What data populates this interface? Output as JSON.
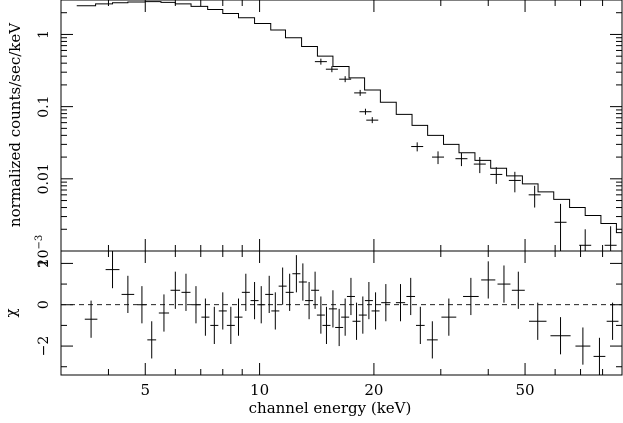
{
  "chart_data": {
    "type": "line",
    "x_scale": "log",
    "x_range": [
      3,
      90
    ],
    "xlabel": "channel energy (keV)",
    "x_ticks": [
      {
        "value": 5,
        "label": "5"
      },
      {
        "value": 10,
        "label": "10"
      },
      {
        "value": 20,
        "label": "20"
      },
      {
        "value": 50,
        "label": "50"
      }
    ],
    "x_minor_ticks": [
      3,
      4,
      6,
      7,
      8,
      9,
      30,
      40,
      60,
      70,
      80,
      90
    ],
    "top_panel": {
      "ylabel": "normalized counts/sec/keV",
      "y_scale": "log",
      "y_range": [
        0.001,
        3
      ],
      "y_ticks": [
        {
          "value": 0.001,
          "base": "10",
          "exponent": "−3"
        },
        {
          "value": 0.01,
          "label": "0.01"
        },
        {
          "value": 0.1,
          "label": "0.1"
        },
        {
          "value": 1,
          "label": "1"
        }
      ],
      "model_step": [
        [
          3.3,
          2.5
        ],
        [
          3.7,
          2.65
        ],
        [
          4.1,
          2.75
        ],
        [
          4.5,
          2.82
        ],
        [
          5.0,
          2.85
        ],
        [
          5.5,
          2.78
        ],
        [
          6.0,
          2.65
        ],
        [
          6.6,
          2.45
        ],
        [
          7.3,
          2.22
        ],
        [
          8.0,
          1.95
        ],
        [
          8.8,
          1.7
        ],
        [
          9.7,
          1.42
        ],
        [
          10.7,
          1.15
        ],
        [
          11.7,
          0.9
        ],
        [
          12.9,
          0.68
        ],
        [
          14.2,
          0.5
        ],
        [
          15.6,
          0.36
        ],
        [
          17.2,
          0.25
        ],
        [
          18.9,
          0.17
        ],
        [
          20.8,
          0.115
        ],
        [
          22.9,
          0.078
        ],
        [
          25.2,
          0.055
        ],
        [
          27.7,
          0.04
        ],
        [
          30.5,
          0.03
        ],
        [
          33.5,
          0.023
        ],
        [
          36.9,
          0.018
        ],
        [
          40.6,
          0.014
        ],
        [
          44.7,
          0.011
        ],
        [
          49.2,
          0.0085
        ],
        [
          54.1,
          0.0066
        ],
        [
          59.5,
          0.0052
        ],
        [
          65.5,
          0.004
        ],
        [
          72.0,
          0.0031
        ],
        [
          79.2,
          0.0024
        ],
        [
          87.0,
          0.0018
        ]
      ],
      "data_points": [
        {
          "x": 14.5,
          "y": 0.42
        },
        {
          "x": 15.5,
          "y": 0.33
        },
        {
          "x": 16.8,
          "y": 0.24
        },
        {
          "x": 18.4,
          "y": 0.155
        },
        {
          "x": 19.0,
          "y": 0.085
        },
        {
          "x": 19.8,
          "y": 0.065
        },
        {
          "x": 26.0,
          "y": 0.028,
          "dy": 0.004
        },
        {
          "x": 29.5,
          "y": 0.02,
          "dy": 0.004
        },
        {
          "x": 34.0,
          "y": 0.019,
          "dy": 0.004
        },
        {
          "x": 38.0,
          "y": 0.016,
          "dy": 0.004
        },
        {
          "x": 42.0,
          "y": 0.0115,
          "dy": 0.003
        },
        {
          "x": 47.0,
          "y": 0.0095,
          "dy": 0.003
        },
        {
          "x": 53.0,
          "y": 0.006,
          "dy": 0.002
        },
        {
          "x": 62.0,
          "y": 0.0025,
          "dy": 0.002
        },
        {
          "x": 72.0,
          "y": 0.0012,
          "dy": 0.0008
        },
        {
          "x": 84.0,
          "y": 0.0012,
          "dy": 0.001
        }
      ]
    },
    "bottom_panel": {
      "ylabel": "χ",
      "y_range": [
        -3.4,
        2.6
      ],
      "y_ticks": [
        {
          "value": 2,
          "label": "2"
        },
        {
          "value": 0,
          "label": "0"
        },
        {
          "value": -2,
          "label": "−2"
        }
      ],
      "zero_line": "dashed",
      "residuals": [
        {
          "x": 3.6,
          "y": -0.7,
          "dy": 0.9
        },
        {
          "x": 4.1,
          "y": 1.7,
          "dy": 0.9
        },
        {
          "x": 4.5,
          "y": 0.5,
          "dy": 0.9
        },
        {
          "x": 4.9,
          "y": 0.0,
          "dy": 0.9
        },
        {
          "x": 5.2,
          "y": -1.7,
          "dy": 0.9
        },
        {
          "x": 5.6,
          "y": -0.4,
          "dy": 0.9
        },
        {
          "x": 6.0,
          "y": 0.7,
          "dy": 0.9
        },
        {
          "x": 6.4,
          "y": 0.6,
          "dy": 0.9
        },
        {
          "x": 6.8,
          "y": 0.0,
          "dy": 0.9
        },
        {
          "x": 7.2,
          "y": -0.6,
          "dy": 0.9
        },
        {
          "x": 7.6,
          "y": -1.0,
          "dy": 0.9
        },
        {
          "x": 8.0,
          "y": -0.3,
          "dy": 0.9
        },
        {
          "x": 8.4,
          "y": -1.0,
          "dy": 0.9
        },
        {
          "x": 8.8,
          "y": -0.6,
          "dy": 0.9
        },
        {
          "x": 9.2,
          "y": 0.6,
          "dy": 0.9
        },
        {
          "x": 9.7,
          "y": 0.2,
          "dy": 0.9
        },
        {
          "x": 10.1,
          "y": 0.0,
          "dy": 0.9
        },
        {
          "x": 10.6,
          "y": 0.5,
          "dy": 0.9
        },
        {
          "x": 11.0,
          "y": -0.3,
          "dy": 0.9
        },
        {
          "x": 11.5,
          "y": 0.9,
          "dy": 0.9
        },
        {
          "x": 12.0,
          "y": 0.6,
          "dy": 0.9
        },
        {
          "x": 12.5,
          "y": 1.5,
          "dy": 0.9
        },
        {
          "x": 13.0,
          "y": 1.1,
          "dy": 0.9
        },
        {
          "x": 13.5,
          "y": 0.2,
          "dy": 0.9
        },
        {
          "x": 14.0,
          "y": 0.7,
          "dy": 0.9
        },
        {
          "x": 14.5,
          "y": -0.5,
          "dy": 0.9
        },
        {
          "x": 15.0,
          "y": -1.0,
          "dy": 0.9
        },
        {
          "x": 15.6,
          "y": -0.2,
          "dy": 0.9
        },
        {
          "x": 16.2,
          "y": -1.1,
          "dy": 0.9
        },
        {
          "x": 16.8,
          "y": -0.6,
          "dy": 0.9
        },
        {
          "x": 17.4,
          "y": 0.4,
          "dy": 0.9
        },
        {
          "x": 18.0,
          "y": -0.8,
          "dy": 0.9
        },
        {
          "x": 18.7,
          "y": -0.5,
          "dy": 0.9
        },
        {
          "x": 19.4,
          "y": 0.2,
          "dy": 0.9
        },
        {
          "x": 20.2,
          "y": -0.3,
          "dy": 0.9
        },
        {
          "x": 21.5,
          "y": 0.1,
          "dy": 0.9
        },
        {
          "x": 23.5,
          "y": 0.1,
          "dy": 0.9
        },
        {
          "x": 25.0,
          "y": 0.4,
          "dy": 0.9
        },
        {
          "x": 26.5,
          "y": -1.0,
          "dy": 0.9
        },
        {
          "x": 28.5,
          "y": -1.7,
          "dy": 0.9
        },
        {
          "x": 31.5,
          "y": -0.6,
          "dy": 0.9
        },
        {
          "x": 36.0,
          "y": 0.4,
          "dy": 0.9
        },
        {
          "x": 40.0,
          "y": 1.2,
          "dy": 0.9
        },
        {
          "x": 44.0,
          "y": 1.0,
          "dy": 0.9
        },
        {
          "x": 48.0,
          "y": 0.7,
          "dy": 0.9
        },
        {
          "x": 54.0,
          "y": -0.8,
          "dy": 0.9
        },
        {
          "x": 62.0,
          "y": -1.5,
          "dy": 0.9
        },
        {
          "x": 71.0,
          "y": -2.0,
          "dy": 0.9
        },
        {
          "x": 78.5,
          "y": -2.5,
          "dy": 0.9
        },
        {
          "x": 85.0,
          "y": -0.8,
          "dy": 0.9
        }
      ]
    }
  }
}
